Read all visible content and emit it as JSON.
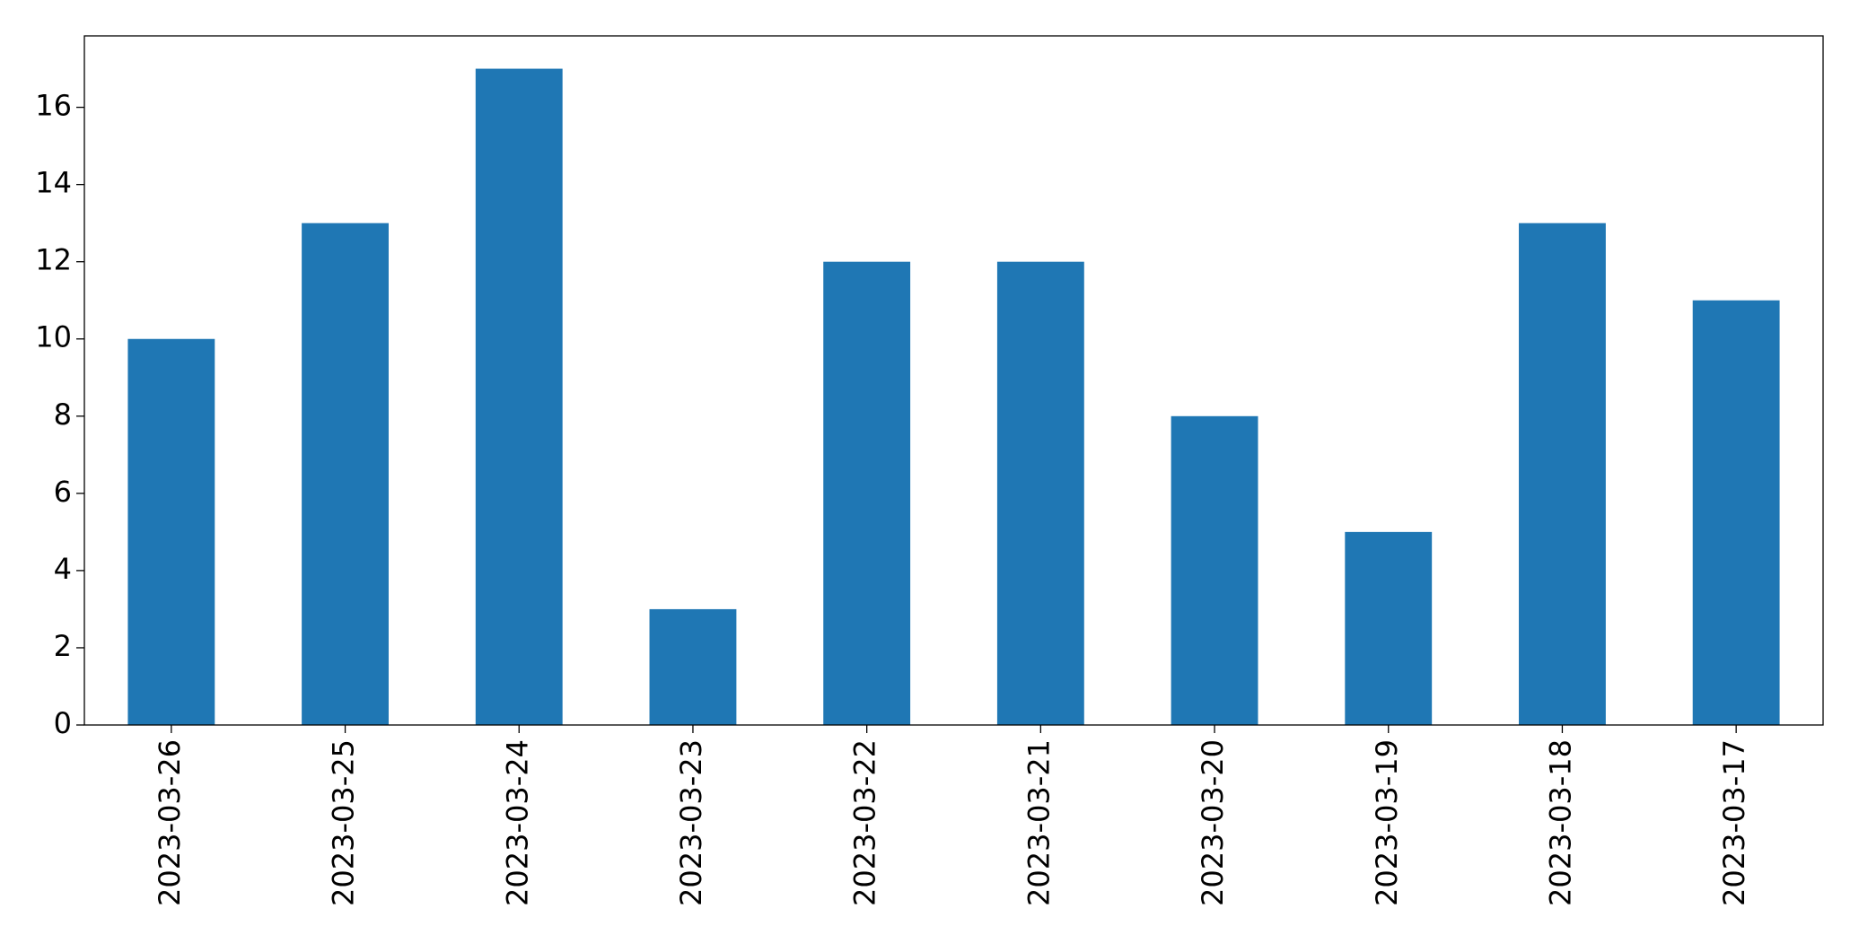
{
  "chart_data": {
    "type": "bar",
    "categories": [
      "2023-03-26",
      "2023-03-25",
      "2023-03-24",
      "2023-03-23",
      "2023-03-22",
      "2023-03-21",
      "2023-03-20",
      "2023-03-19",
      "2023-03-18",
      "2023-03-17"
    ],
    "values": [
      10,
      13,
      17,
      3,
      12,
      12,
      8,
      5,
      13,
      11
    ],
    "color": "#1f77b4",
    "ylim": [
      0,
      17.85
    ],
    "yticks": [
      0,
      2,
      4,
      6,
      8,
      10,
      12,
      14,
      16
    ],
    "grid": false
  }
}
